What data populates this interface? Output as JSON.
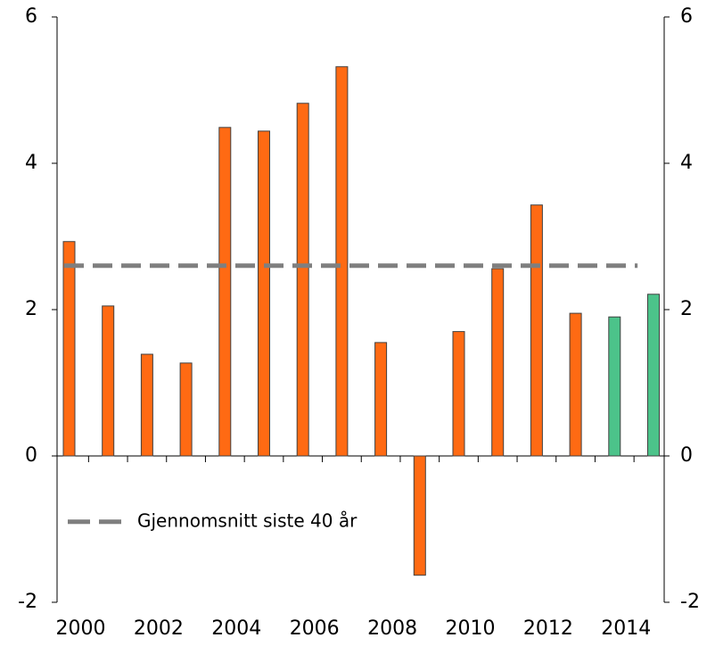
{
  "chart_data": {
    "type": "bar",
    "categories": [
      "2000",
      null,
      "2002",
      null,
      "2004",
      null,
      "2006",
      null,
      "2008",
      null,
      "2010",
      null,
      "2012",
      null,
      "2014",
      null
    ],
    "values": [
      2.93,
      2.05,
      1.39,
      1.27,
      4.49,
      4.44,
      4.82,
      5.32,
      1.55,
      -1.63,
      1.7,
      2.56,
      3.43,
      1.95,
      1.9,
      2.21
    ],
    "colors": [
      "#ff6a13",
      "#ff6a13",
      "#ff6a13",
      "#ff6a13",
      "#ff6a13",
      "#ff6a13",
      "#ff6a13",
      "#ff6a13",
      "#ff6a13",
      "#ff6a13",
      "#ff6a13",
      "#ff6a13",
      "#ff6a13",
      "#ff6a13",
      "#4cc38a",
      "#4cc38a"
    ],
    "reference_line": {
      "value": 2.6,
      "label": "Gjennomsnitt siste 40 år",
      "color": "#7f7f7f"
    },
    "ylim": [
      -2,
      6
    ],
    "yticks": [
      -2,
      0,
      2,
      4,
      6
    ],
    "y2lim": [
      -2,
      6
    ],
    "y2ticks": [
      -2,
      0,
      2,
      4,
      6
    ],
    "legend": "lower-left"
  }
}
